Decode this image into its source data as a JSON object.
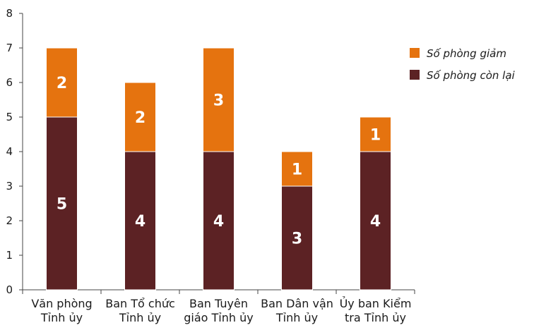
{
  "chart_data": {
    "type": "bar",
    "stacked": true,
    "categories": [
      [
        "Văn phòng",
        "Tỉnh ủy"
      ],
      [
        "Ban Tổ chức",
        "Tỉnh ủy"
      ],
      [
        "Ban Tuyên",
        "giáo Tỉnh ủy"
      ],
      [
        "Ban Dân vận",
        "Tỉnh ủy"
      ],
      [
        "Ủy ban Kiểm",
        "tra Tỉnh ủy"
      ]
    ],
    "series": [
      {
        "name": "Số phòng còn lại",
        "values": [
          5,
          4,
          4,
          3,
          4
        ],
        "color": "#5c2224"
      },
      {
        "name": "Số phòng giảm",
        "values": [
          2,
          2,
          3,
          1,
          1
        ],
        "color": "#e5730f"
      }
    ],
    "legend_order": [
      1,
      0
    ],
    "ylim": [
      0,
      8
    ],
    "yticks": [
      0,
      1,
      2,
      3,
      4,
      5,
      6,
      7,
      8
    ],
    "grid": false,
    "legend_position": "right",
    "title": "",
    "xlabel": "",
    "ylabel": ""
  }
}
